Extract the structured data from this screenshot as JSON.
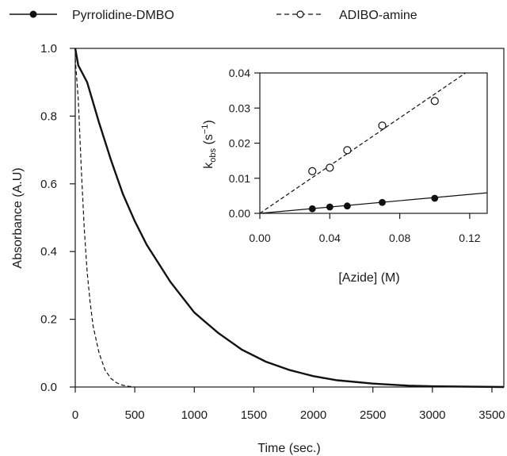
{
  "chart_data": [
    {
      "type": "line",
      "title": "",
      "xlabel": "Time (sec.)",
      "ylabel": "Absorbance (A.U)",
      "xlim": [
        0,
        3600
      ],
      "ylim": [
        0,
        1.0
      ],
      "x_ticks": [
        "0",
        "500",
        "1000",
        "1500",
        "2000",
        "2500",
        "3000",
        "3500"
      ],
      "y_ticks": [
        "0.0",
        "0.2",
        "0.4",
        "0.6",
        "0.8",
        "1.0"
      ],
      "legend": {
        "placement": "top",
        "entries": [
          {
            "label": "Pyrrolidine-DMBO",
            "style": "solid-filled-circle"
          },
          {
            "label": "ADIBO-amine",
            "style": "dashed-open-circle"
          }
        ]
      },
      "series": [
        {
          "name": "Pyrrolidine-DMBO",
          "style": "solid",
          "x": [
            0,
            25,
            100,
            200,
            300,
            400,
            500,
            600,
            800,
            1000,
            1200,
            1400,
            1600,
            1800,
            2000,
            2200,
            2500,
            2800,
            3000,
            3600
          ],
          "y": [
            1.0,
            0.95,
            0.9,
            0.78,
            0.67,
            0.57,
            0.49,
            0.42,
            0.31,
            0.22,
            0.16,
            0.11,
            0.075,
            0.05,
            0.032,
            0.02,
            0.01,
            0.004,
            0.002,
            0.0
          ]
        },
        {
          "name": "ADIBO-amine",
          "style": "dashed",
          "x": [
            0,
            25,
            50,
            75,
            100,
            125,
            150,
            200,
            250,
            300,
            350,
            400,
            450,
            500
          ],
          "y": [
            0.97,
            0.85,
            0.65,
            0.47,
            0.34,
            0.25,
            0.18,
            0.1,
            0.05,
            0.025,
            0.012,
            0.005,
            0.002,
            0.0
          ]
        }
      ]
    },
    {
      "type": "scatter",
      "title": "",
      "xlabel": "[Azide] (M)",
      "ylabel_main": "k",
      "ylabel_sub": "obs",
      "ylabel_unit_open": " (s",
      "ylabel_sup": "−1",
      "ylabel_unit_close": ")",
      "xlim": [
        0,
        0.13
      ],
      "ylim": [
        0,
        0.04
      ],
      "x_ticks": [
        "0.00",
        "0.04",
        "0.08",
        "0.12"
      ],
      "y_ticks": [
        "0.00",
        "0.01",
        "0.02",
        "0.03",
        "0.04"
      ],
      "series": [
        {
          "name": "Pyrrolidine-DMBO",
          "marker": "filled-circle",
          "fit": "solid",
          "fit_slope": 0.045,
          "x": [
            0.03,
            0.04,
            0.05,
            0.07,
            0.1
          ],
          "y": [
            0.0013,
            0.0018,
            0.0021,
            0.0031,
            0.0043
          ]
        },
        {
          "name": "ADIBO-amine",
          "marker": "open-circle",
          "fit": "dashed",
          "fit_slope": 0.34,
          "x": [
            0.03,
            0.04,
            0.05,
            0.07,
            0.1
          ],
          "y": [
            0.012,
            0.013,
            0.018,
            0.025,
            0.032
          ]
        }
      ]
    }
  ]
}
